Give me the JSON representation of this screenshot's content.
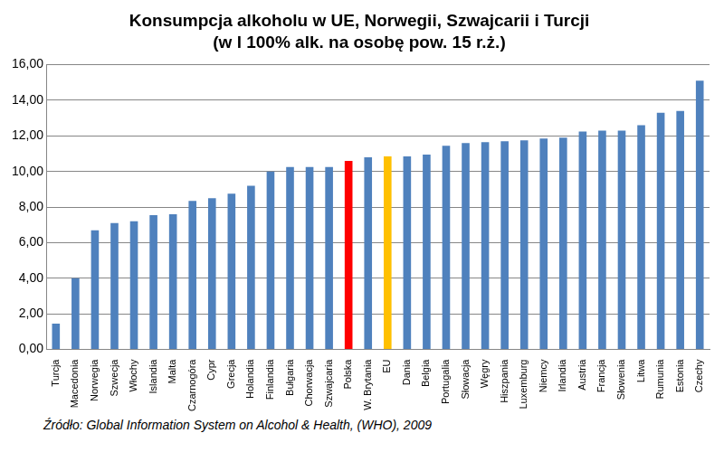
{
  "chart_data": {
    "type": "bar",
    "title": "Konsumpcja alkoholu w UE, Norwegii, Szwajcarii i Turcji",
    "subtitle": "(w l 100% alk. na osobę pow. 15 r.ż.)",
    "annotations": [
      "Źródło: Global Information System on Alcohol & Health, (WHO), 2009"
    ],
    "categories": [
      "Turcja",
      "Macedonia",
      "Norwegia",
      "Szwecja",
      "Włochy",
      "Islandia",
      "Malta",
      "Czarnogóra",
      "Cypr",
      "Grecja",
      "Holandia",
      "Finlandia",
      "Bułgaria",
      "Chorwacja",
      "Szwajcaria",
      "Polska",
      "W. Brytania",
      "EU",
      "Dania",
      "Belgia",
      "Portugalia",
      "Słowacja",
      "Węgry",
      "Hiszpania",
      "Luxemburg",
      "Niemcy",
      "Irlandia",
      "Austria",
      "Francja",
      "Słowenia",
      "Litwa",
      "Rumunia",
      "Estonia",
      "Czechy"
    ],
    "values": [
      1.45,
      4.0,
      6.7,
      7.1,
      7.2,
      7.55,
      7.6,
      8.35,
      8.5,
      8.75,
      9.2,
      10.0,
      10.25,
      10.25,
      10.25,
      10.6,
      10.8,
      10.85,
      10.85,
      10.95,
      11.45,
      11.6,
      11.65,
      11.7,
      11.75,
      11.85,
      11.9,
      12.25,
      12.3,
      12.3,
      12.6,
      13.3,
      13.4,
      15.1
    ],
    "colors": [
      "#4f81bd",
      "#4f81bd",
      "#4f81bd",
      "#4f81bd",
      "#4f81bd",
      "#4f81bd",
      "#4f81bd",
      "#4f81bd",
      "#4f81bd",
      "#4f81bd",
      "#4f81bd",
      "#4f81bd",
      "#4f81bd",
      "#4f81bd",
      "#4f81bd",
      "#ff0000",
      "#4f81bd",
      "#ffc000",
      "#4f81bd",
      "#4f81bd",
      "#4f81bd",
      "#4f81bd",
      "#4f81bd",
      "#4f81bd",
      "#4f81bd",
      "#4f81bd",
      "#4f81bd",
      "#4f81bd",
      "#4f81bd",
      "#4f81bd",
      "#4f81bd",
      "#4f81bd",
      "#4f81bd",
      "#4f81bd"
    ],
    "ylim": [
      0,
      16
    ],
    "yticks": [
      {
        "value": 0,
        "label": "0,00"
      },
      {
        "value": 2,
        "label": "2,00"
      },
      {
        "value": 4,
        "label": "4,00"
      },
      {
        "value": 6,
        "label": "6,00"
      },
      {
        "value": 8,
        "label": "8,00"
      },
      {
        "value": 10,
        "label": "10,00"
      },
      {
        "value": 12,
        "label": "12,00"
      },
      {
        "value": 14,
        "label": "14,00"
      },
      {
        "value": 16,
        "label": "16,00"
      }
    ],
    "grid": true
  }
}
